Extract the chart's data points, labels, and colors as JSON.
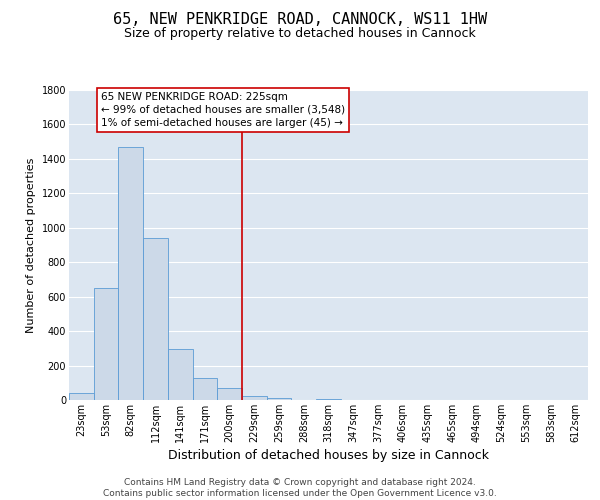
{
  "title": "65, NEW PENKRIDGE ROAD, CANNOCK, WS11 1HW",
  "subtitle": "Size of property relative to detached houses in Cannock",
  "xlabel": "Distribution of detached houses by size in Cannock",
  "ylabel": "Number of detached properties",
  "bin_labels": [
    "23sqm",
    "53sqm",
    "82sqm",
    "112sqm",
    "141sqm",
    "171sqm",
    "200sqm",
    "229sqm",
    "259sqm",
    "288sqm",
    "318sqm",
    "347sqm",
    "377sqm",
    "406sqm",
    "435sqm",
    "465sqm",
    "494sqm",
    "524sqm",
    "553sqm",
    "583sqm",
    "612sqm"
  ],
  "bar_values": [
    40,
    650,
    1470,
    940,
    295,
    130,
    70,
    25,
    10,
    0,
    5,
    0,
    0,
    0,
    0,
    0,
    0,
    0,
    0,
    0,
    0
  ],
  "bar_color": "#ccd9e8",
  "bar_edge_color": "#5b9bd5",
  "vline_color": "#cc0000",
  "vline_x_index": 7,
  "annotation_text": "65 NEW PENKRIDGE ROAD: 225sqm\n← 99% of detached houses are smaller (3,548)\n1% of semi-detached houses are larger (45) →",
  "annotation_box_facecolor": "#ffffff",
  "annotation_box_edgecolor": "#cc0000",
  "ylim": [
    0,
    1800
  ],
  "yticks": [
    0,
    200,
    400,
    600,
    800,
    1000,
    1200,
    1400,
    1600,
    1800
  ],
  "plot_bg_color": "#dce6f1",
  "grid_color": "#ffffff",
  "footnote": "Contains HM Land Registry data © Crown copyright and database right 2024.\nContains public sector information licensed under the Open Government Licence v3.0.",
  "title_fontsize": 11,
  "subtitle_fontsize": 9,
  "xlabel_fontsize": 9,
  "ylabel_fontsize": 8,
  "tick_fontsize": 7,
  "annotation_fontsize": 7.5,
  "footnote_fontsize": 6.5
}
